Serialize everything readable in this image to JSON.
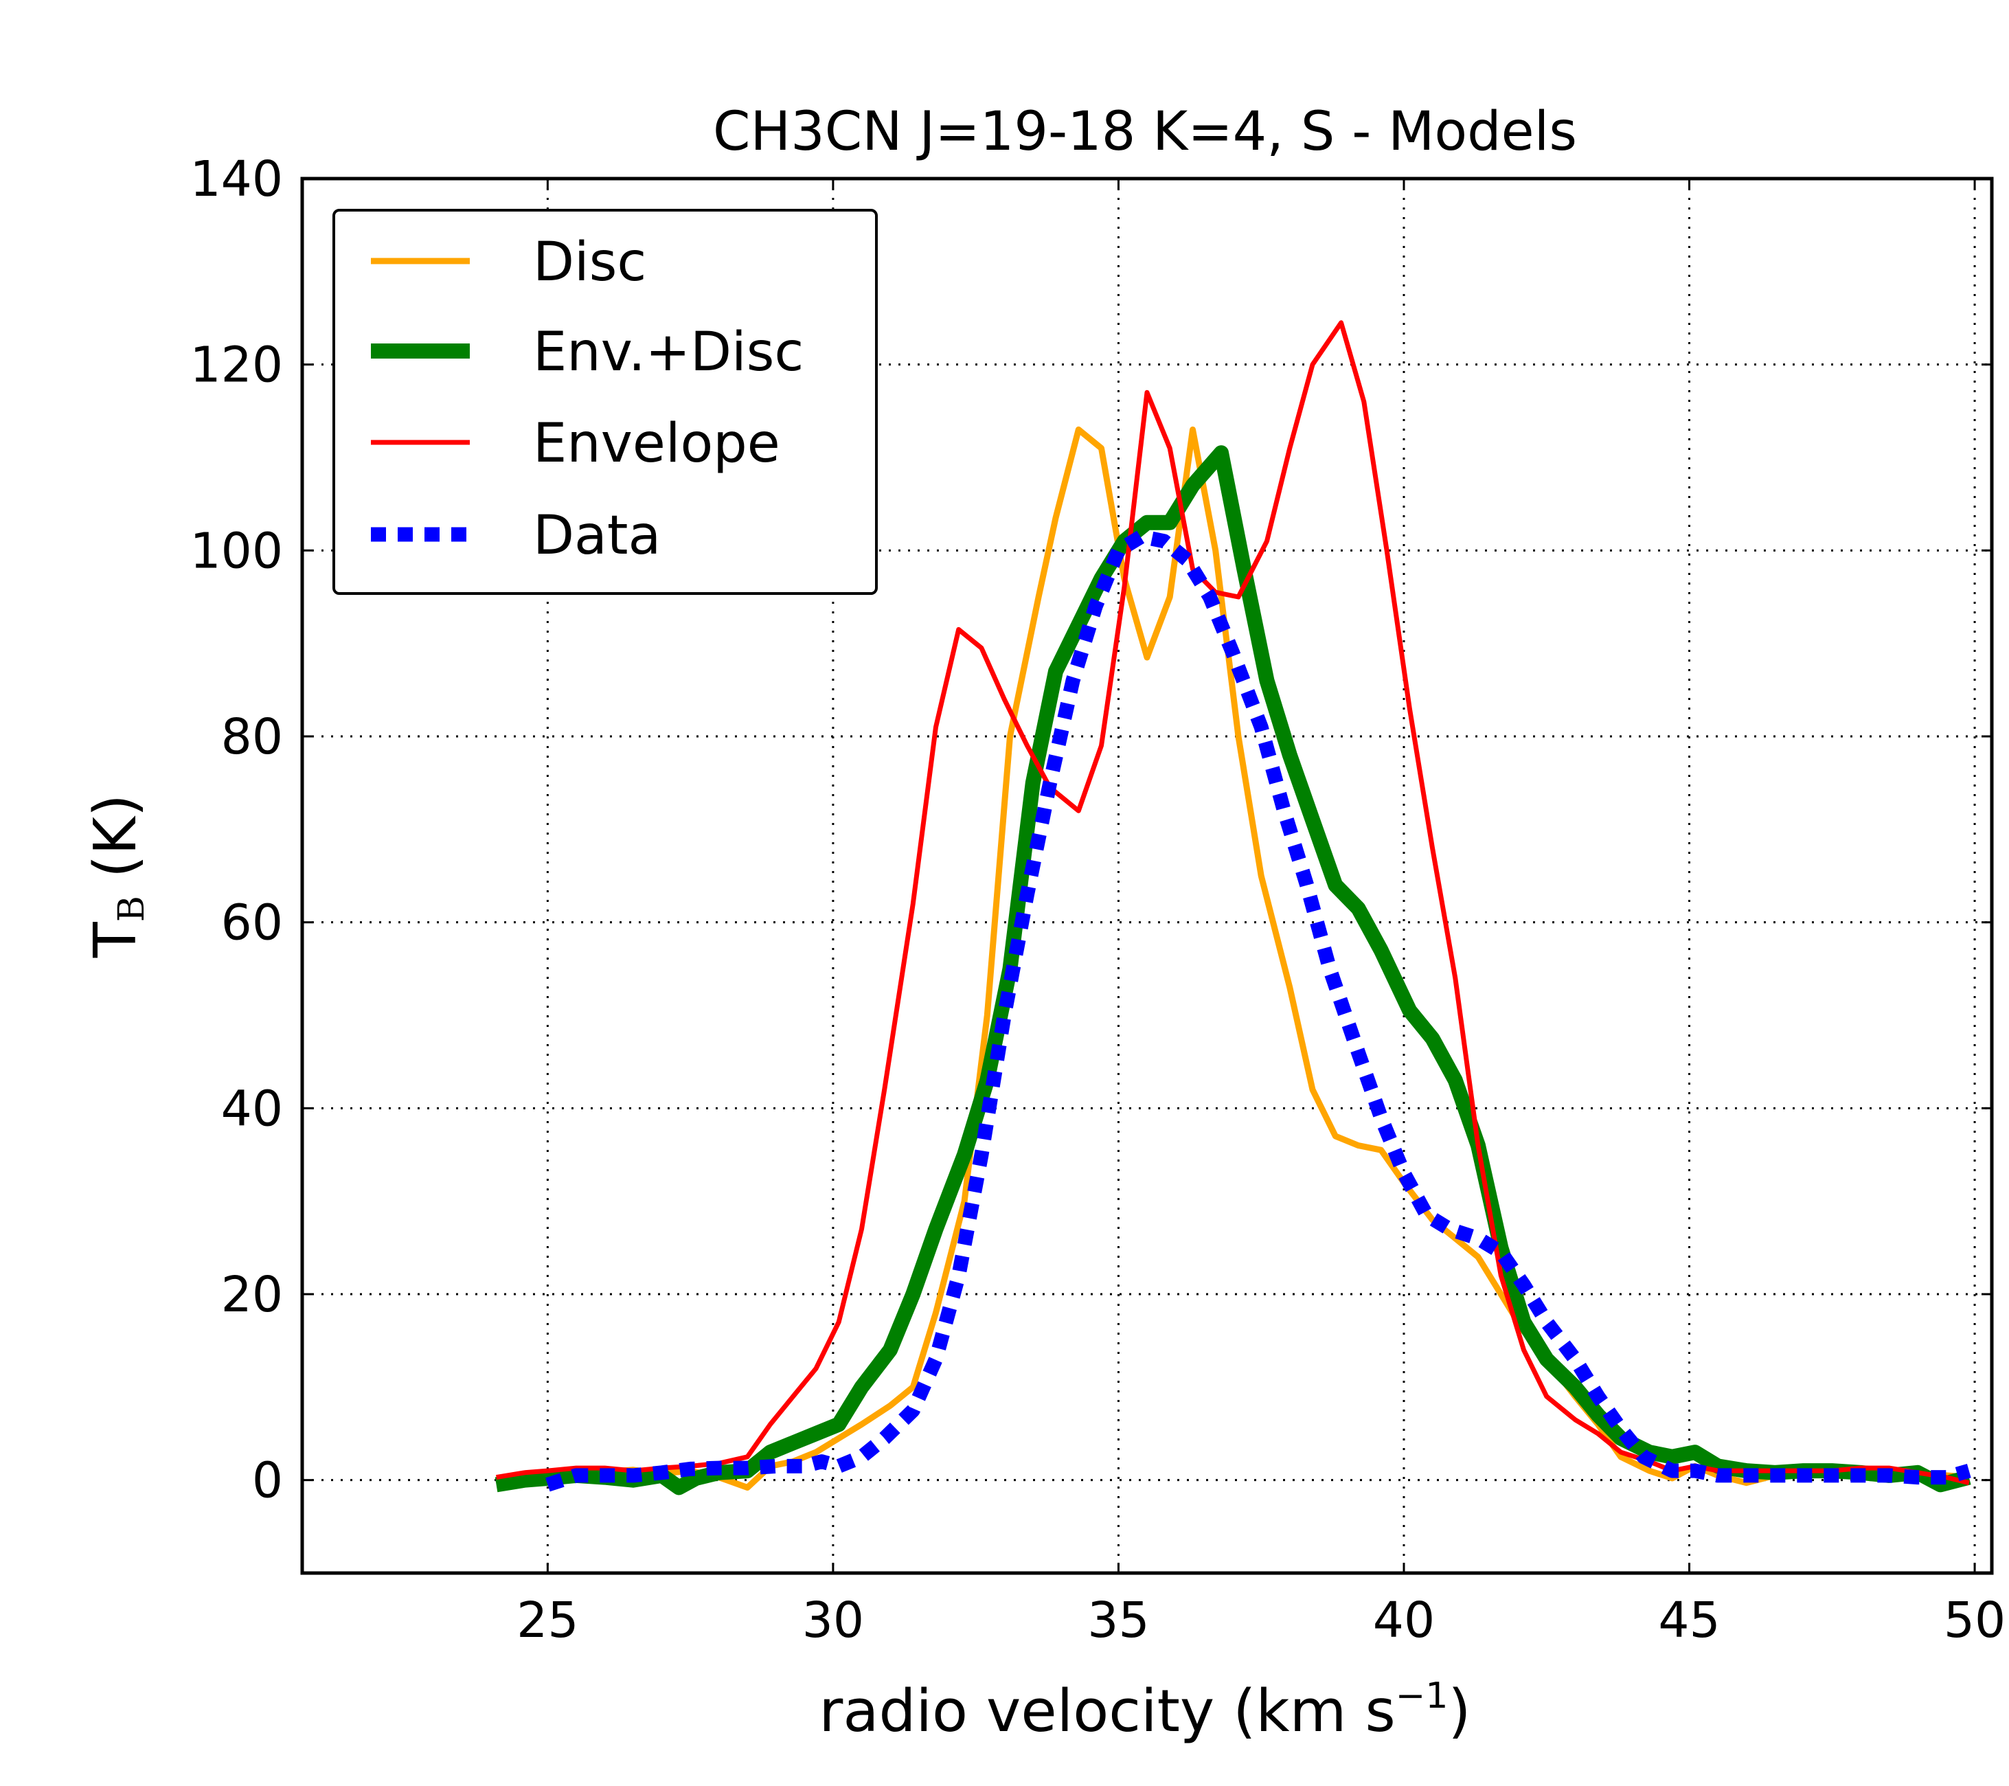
{
  "chart_data": {
    "type": "line",
    "title": "CH3CN J=19-18 K=4, S - Models",
    "xlabel": {
      "text": "radio velocity (km s",
      "sup": "−1",
      "close": ")"
    },
    "ylabel": {
      "main": "T",
      "sub": "B",
      "unit": "(K)"
    },
    "xlim": [
      20.7,
      50.3
    ],
    "ylim": [
      -10,
      140
    ],
    "xticks": [
      25,
      30,
      35,
      40,
      45,
      50
    ],
    "yticks": [
      0,
      20,
      40,
      60,
      80,
      100,
      120,
      140
    ],
    "grid": true,
    "legend_position": "top-left",
    "series": [
      {
        "name": "Disc",
        "color": "#ffa500",
        "style": "solid-medium",
        "points": [
          [
            24.1,
            0.0
          ],
          [
            24.6,
            0.4
          ],
          [
            25.0,
            0.8
          ],
          [
            25.5,
            1.0
          ],
          [
            26.0,
            0.9
          ],
          [
            26.5,
            1.1
          ],
          [
            27.0,
            0.7
          ],
          [
            27.5,
            1.0
          ],
          [
            28.0,
            0.3
          ],
          [
            28.5,
            -0.8
          ],
          [
            28.9,
            1.5
          ],
          [
            29.3,
            2.0
          ],
          [
            29.7,
            3.0
          ],
          [
            30.1,
            4.5
          ],
          [
            30.5,
            6.0
          ],
          [
            31.0,
            8.0
          ],
          [
            31.4,
            10.0
          ],
          [
            31.8,
            18.0
          ],
          [
            32.3,
            30.0
          ],
          [
            32.7,
            50.0
          ],
          [
            33.1,
            80.0
          ],
          [
            33.6,
            95.0
          ],
          [
            33.9,
            103.5
          ],
          [
            34.3,
            113.0
          ],
          [
            34.7,
            111.0
          ],
          [
            35.1,
            97.0
          ],
          [
            35.5,
            88.5
          ],
          [
            35.9,
            95.0
          ],
          [
            36.3,
            113.0
          ],
          [
            36.7,
            100.0
          ],
          [
            37.1,
            80.0
          ],
          [
            37.5,
            65.0
          ],
          [
            38.0,
            53.0
          ],
          [
            38.4,
            42.0
          ],
          [
            38.8,
            37.0
          ],
          [
            39.2,
            36.0
          ],
          [
            39.6,
            35.5
          ],
          [
            40.0,
            32.0
          ],
          [
            40.5,
            28.0
          ],
          [
            40.9,
            26.0
          ],
          [
            41.3,
            24.0
          ],
          [
            41.7,
            20.0
          ],
          [
            42.1,
            16.0
          ],
          [
            42.5,
            13.0
          ],
          [
            43.0,
            9.0
          ],
          [
            43.4,
            6.0
          ],
          [
            43.8,
            2.5
          ],
          [
            44.3,
            1.0
          ],
          [
            44.7,
            0.2
          ],
          [
            45.1,
            1.5
          ],
          [
            45.5,
            0.5
          ],
          [
            46.0,
            -0.3
          ],
          [
            46.5,
            0.5
          ],
          [
            47.0,
            0.5
          ],
          [
            47.5,
            0.8
          ],
          [
            48.0,
            1.0
          ],
          [
            48.5,
            1.0
          ],
          [
            49.0,
            0.5
          ],
          [
            49.5,
            0.5
          ],
          [
            49.9,
            0.3
          ]
        ]
      },
      {
        "name": "Env.+Disc",
        "color": "#008000",
        "style": "solid-thick",
        "points": [
          [
            24.1,
            -0.5
          ],
          [
            24.6,
            0.0
          ],
          [
            25.0,
            0.2
          ],
          [
            25.5,
            0.5
          ],
          [
            26.0,
            0.3
          ],
          [
            26.5,
            0.0
          ],
          [
            27.0,
            0.5
          ],
          [
            27.3,
            -0.8
          ],
          [
            27.6,
            0.2
          ],
          [
            28.0,
            0.8
          ],
          [
            28.5,
            1.0
          ],
          [
            28.9,
            3.0
          ],
          [
            29.3,
            4.0
          ],
          [
            29.7,
            5.0
          ],
          [
            30.1,
            6.0
          ],
          [
            30.5,
            10.0
          ],
          [
            31.0,
            14.0
          ],
          [
            31.4,
            20.0
          ],
          [
            31.8,
            27.0
          ],
          [
            32.3,
            35.0
          ],
          [
            32.7,
            43.0
          ],
          [
            33.1,
            55.0
          ],
          [
            33.5,
            75.0
          ],
          [
            33.9,
            87.0
          ],
          [
            34.3,
            92.0
          ],
          [
            34.7,
            97.0
          ],
          [
            35.1,
            101.0
          ],
          [
            35.5,
            103.0
          ],
          [
            35.9,
            103.0
          ],
          [
            36.3,
            107.0
          ],
          [
            36.8,
            110.5
          ],
          [
            37.2,
            98.0
          ],
          [
            37.6,
            86.0
          ],
          [
            38.0,
            78.0
          ],
          [
            38.4,
            71.0
          ],
          [
            38.8,
            64.0
          ],
          [
            39.2,
            61.5
          ],
          [
            39.6,
            57.0
          ],
          [
            40.1,
            50.5
          ],
          [
            40.5,
            47.5
          ],
          [
            40.9,
            43.0
          ],
          [
            41.3,
            36.0
          ],
          [
            41.7,
            25.0
          ],
          [
            42.1,
            17.0
          ],
          [
            42.5,
            13.0
          ],
          [
            43.0,
            10.0
          ],
          [
            43.4,
            7.0
          ],
          [
            43.8,
            4.5
          ],
          [
            44.3,
            3.0
          ],
          [
            44.7,
            2.5
          ],
          [
            45.1,
            3.0
          ],
          [
            45.5,
            1.5
          ],
          [
            46.0,
            1.0
          ],
          [
            46.5,
            0.8
          ],
          [
            47.0,
            1.0
          ],
          [
            47.5,
            1.0
          ],
          [
            48.0,
            0.8
          ],
          [
            48.5,
            0.5
          ],
          [
            49.0,
            0.8
          ],
          [
            49.4,
            -0.5
          ],
          [
            49.9,
            0.3
          ]
        ]
      },
      {
        "name": "Envelope",
        "color": "#ff0000",
        "style": "solid-thin",
        "points": [
          [
            24.1,
            0.3
          ],
          [
            24.6,
            0.8
          ],
          [
            25.0,
            1.0
          ],
          [
            25.5,
            1.3
          ],
          [
            26.0,
            1.3
          ],
          [
            26.5,
            1.0
          ],
          [
            27.0,
            1.3
          ],
          [
            27.5,
            1.5
          ],
          [
            28.0,
            1.8
          ],
          [
            28.5,
            2.5
          ],
          [
            28.9,
            6.0
          ],
          [
            29.3,
            9.0
          ],
          [
            29.7,
            12.0
          ],
          [
            30.1,
            17.0
          ],
          [
            30.5,
            27.0
          ],
          [
            30.9,
            42.0
          ],
          [
            31.4,
            62.0
          ],
          [
            31.8,
            81.0
          ],
          [
            32.2,
            91.5
          ],
          [
            32.6,
            89.5
          ],
          [
            33.0,
            84.0
          ],
          [
            33.4,
            79.0
          ],
          [
            33.8,
            74.5
          ],
          [
            34.3,
            72.0
          ],
          [
            34.7,
            79.0
          ],
          [
            35.1,
            96.0
          ],
          [
            35.5,
            117.0
          ],
          [
            35.9,
            111.0
          ],
          [
            36.3,
            98.0
          ],
          [
            36.7,
            95.5
          ],
          [
            37.1,
            95.0
          ],
          [
            37.6,
            101.0
          ],
          [
            38.0,
            111.0
          ],
          [
            38.4,
            120.0
          ],
          [
            38.9,
            124.5
          ],
          [
            39.3,
            116.0
          ],
          [
            39.7,
            100.0
          ],
          [
            40.1,
            83.0
          ],
          [
            40.5,
            68.0
          ],
          [
            40.9,
            54.0
          ],
          [
            41.3,
            36.0
          ],
          [
            41.7,
            22.0
          ],
          [
            42.1,
            14.0
          ],
          [
            42.5,
            9.0
          ],
          [
            43.0,
            6.5
          ],
          [
            43.4,
            5.0
          ],
          [
            43.8,
            3.0
          ],
          [
            44.3,
            2.0
          ],
          [
            44.7,
            1.0
          ],
          [
            45.1,
            1.5
          ],
          [
            45.5,
            1.0
          ],
          [
            46.0,
            1.0
          ],
          [
            46.5,
            1.0
          ],
          [
            47.0,
            1.0
          ],
          [
            47.5,
            1.0
          ],
          [
            48.0,
            1.3
          ],
          [
            48.5,
            1.3
          ],
          [
            49.0,
            0.8
          ],
          [
            49.5,
            0.3
          ],
          [
            49.9,
            -0.3
          ]
        ]
      },
      {
        "name": "Data",
        "color": "#0000ff",
        "style": "dotted-thick",
        "points": [
          [
            25.0,
            -0.5
          ],
          [
            25.5,
            0.5
          ],
          [
            26.0,
            0.5
          ],
          [
            26.5,
            0.5
          ],
          [
            27.0,
            0.8
          ],
          [
            27.5,
            1.2
          ],
          [
            28.0,
            1.3
          ],
          [
            28.5,
            1.3
          ],
          [
            29.0,
            1.5
          ],
          [
            29.5,
            1.5
          ],
          [
            29.8,
            2.0
          ],
          [
            30.1,
            1.5
          ],
          [
            30.5,
            2.5
          ],
          [
            30.9,
            4.5
          ],
          [
            31.4,
            7.5
          ],
          [
            31.8,
            13.0
          ],
          [
            32.2,
            22.0
          ],
          [
            32.6,
            35.0
          ],
          [
            33.0,
            50.0
          ],
          [
            33.4,
            63.0
          ],
          [
            33.8,
            75.0
          ],
          [
            34.2,
            86.0
          ],
          [
            34.6,
            94.0
          ],
          [
            35.0,
            100.0
          ],
          [
            35.4,
            101.5
          ],
          [
            35.8,
            101.0
          ],
          [
            36.2,
            99.0
          ],
          [
            36.6,
            95.0
          ],
          [
            37.0,
            89.0
          ],
          [
            37.5,
            81.0
          ],
          [
            37.9,
            72.0
          ],
          [
            38.3,
            64.0
          ],
          [
            38.7,
            55.0
          ],
          [
            39.2,
            46.0
          ],
          [
            39.6,
            39.0
          ],
          [
            40.0,
            33.0
          ],
          [
            40.4,
            28.5
          ],
          [
            40.8,
            27.0
          ],
          [
            41.3,
            26.0
          ],
          [
            41.7,
            24.5
          ],
          [
            42.1,
            21.0
          ],
          [
            42.5,
            17.0
          ],
          [
            43.0,
            13.0
          ],
          [
            43.4,
            9.0
          ],
          [
            43.8,
            5.5
          ],
          [
            44.2,
            2.5
          ],
          [
            44.7,
            1.0
          ],
          [
            45.1,
            1.0
          ],
          [
            45.5,
            0.5
          ],
          [
            46.0,
            0.5
          ],
          [
            46.5,
            0.5
          ],
          [
            47.0,
            0.5
          ],
          [
            47.5,
            0.5
          ],
          [
            48.0,
            0.5
          ],
          [
            48.5,
            0.5
          ],
          [
            49.0,
            0.3
          ],
          [
            49.5,
            0.3
          ],
          [
            49.9,
            1.0
          ]
        ]
      }
    ]
  }
}
